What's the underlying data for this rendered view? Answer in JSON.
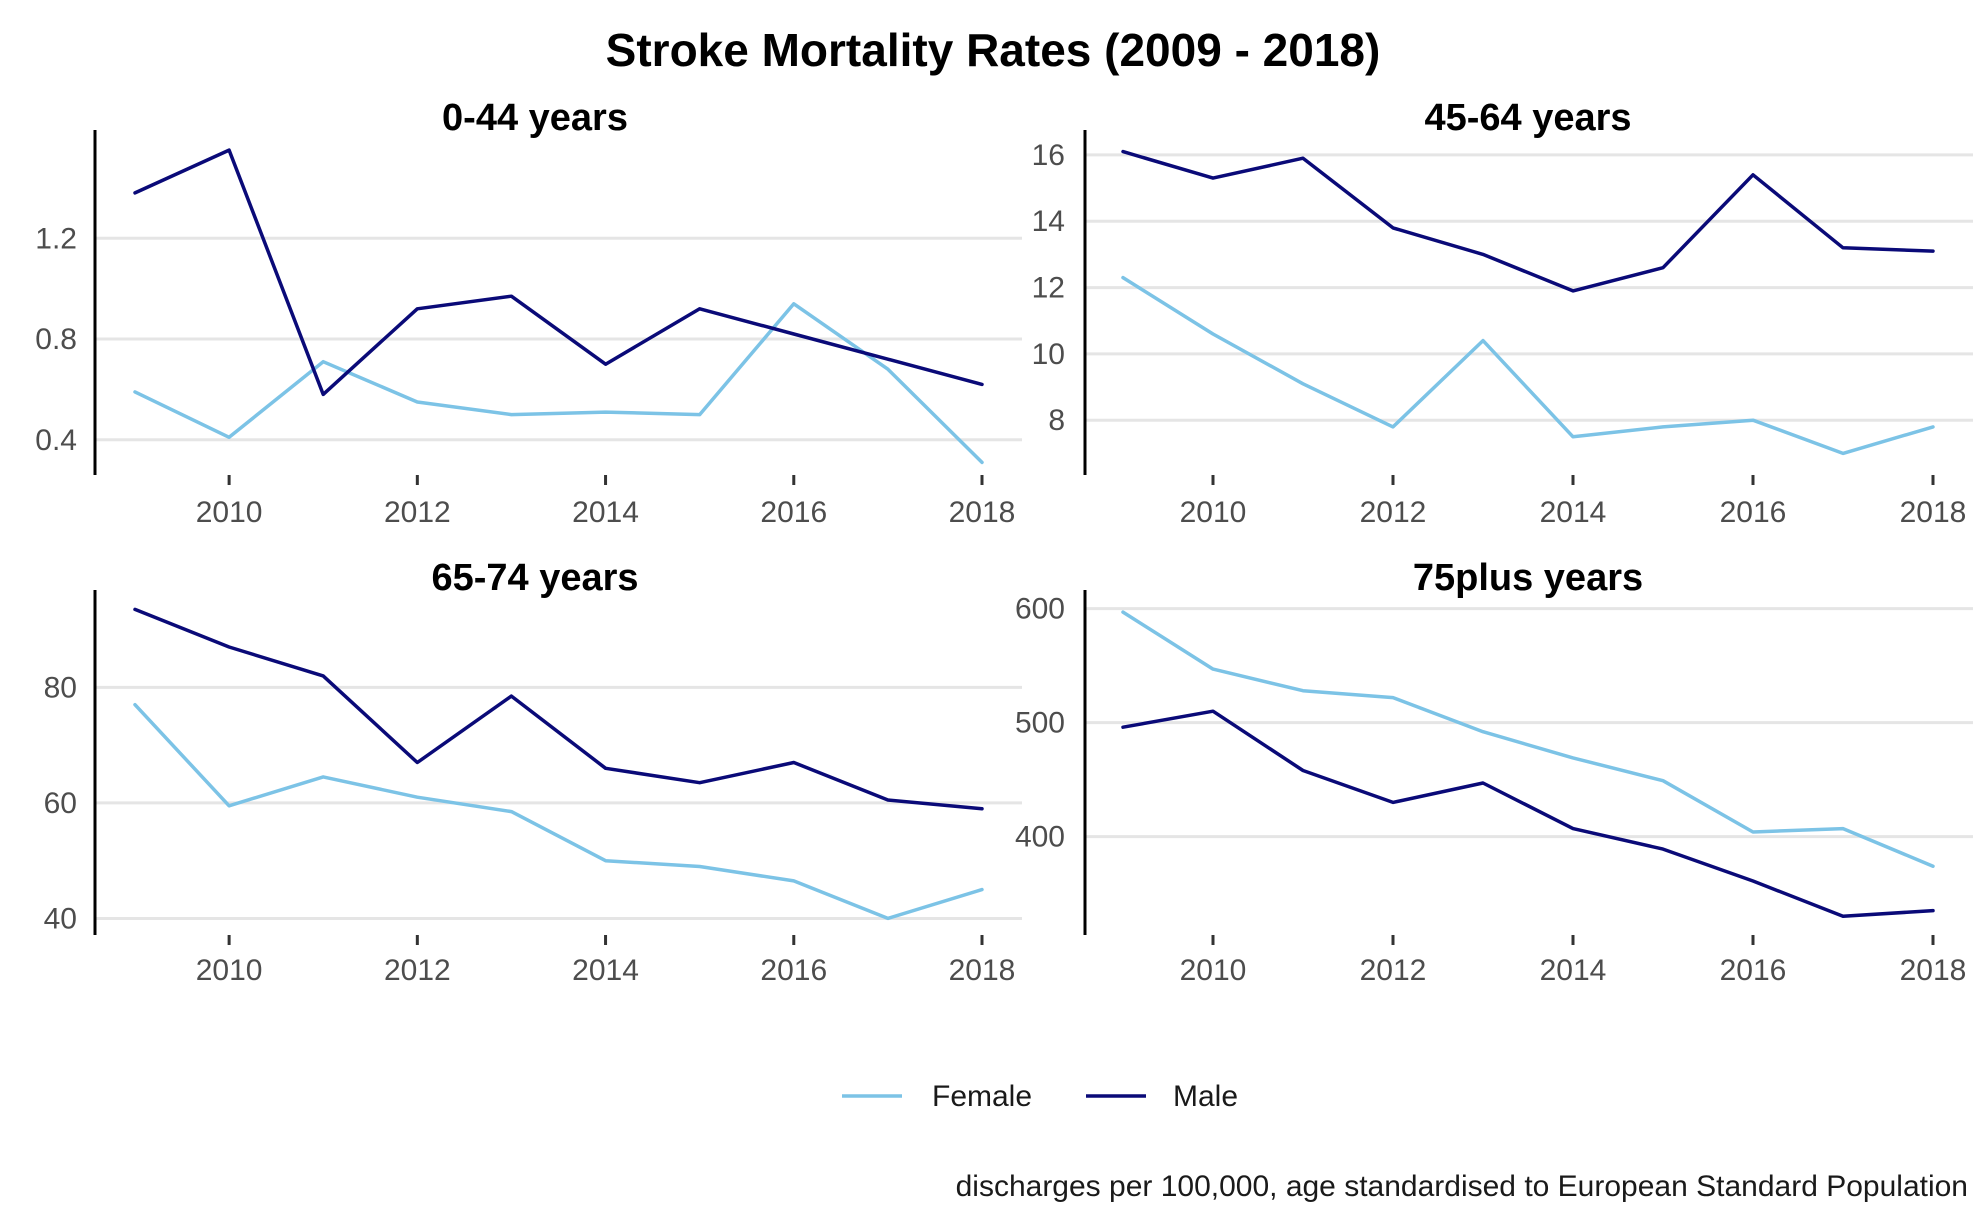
{
  "title": "Stroke Mortality Rates (2009 - 2018)",
  "caption": "discharges per 100,000, age standardised to European Standard Population",
  "colors": {
    "Female": "#7cc3e6",
    "Male": "#0a0a78"
  },
  "legend": {
    "position": "bottom",
    "items": [
      "Female",
      "Male"
    ]
  },
  "chart_data": [
    {
      "type": "line",
      "title": "0-44 years",
      "x": [
        2009,
        2010,
        2011,
        2012,
        2013,
        2014,
        2015,
        2016,
        2017,
        2018
      ],
      "x_ticks": [
        "2010",
        "2012",
        "2014",
        "2016",
        "2018"
      ],
      "y_ticks": [
        "0.4",
        "0.8",
        "1.2"
      ],
      "ylim": [
        0.28,
        1.61
      ],
      "xlim": [
        2009,
        2018
      ],
      "grid": "horizontal",
      "series": [
        {
          "name": "Female",
          "values": [
            0.59,
            0.41,
            0.71,
            0.55,
            0.5,
            0.51,
            0.5,
            0.94,
            0.68,
            0.31
          ]
        },
        {
          "name": "Male",
          "values": [
            1.38,
            1.55,
            0.58,
            0.92,
            0.97,
            0.7,
            0.92,
            0.82,
            0.72,
            0.62
          ]
        }
      ]
    },
    {
      "type": "line",
      "title": "45-64 years",
      "x": [
        2009,
        2010,
        2011,
        2012,
        2013,
        2014,
        2015,
        2016,
        2017,
        2018
      ],
      "x_ticks": [
        "2010",
        "2012",
        "2014",
        "2016",
        "2018"
      ],
      "y_ticks": [
        "8",
        "10",
        "12",
        "14",
        "16"
      ],
      "ylim": [
        6.5,
        16.6
      ],
      "xlim": [
        2009,
        2018
      ],
      "grid": "horizontal",
      "series": [
        {
          "name": "Female",
          "values": [
            12.3,
            10.6,
            9.1,
            7.8,
            10.4,
            7.5,
            7.8,
            8.0,
            7.0,
            7.8
          ]
        },
        {
          "name": "Male",
          "values": [
            16.1,
            15.3,
            15.9,
            13.8,
            13.0,
            11.9,
            12.6,
            15.4,
            13.2,
            13.1
          ]
        }
      ]
    },
    {
      "type": "line",
      "title": "65-74 years",
      "x": [
        2009,
        2010,
        2011,
        2012,
        2013,
        2014,
        2015,
        2016,
        2017,
        2018
      ],
      "x_ticks": [
        "2010",
        "2012",
        "2014",
        "2016",
        "2018"
      ],
      "y_ticks": [
        "40",
        "60",
        "80"
      ],
      "ylim": [
        38,
        96
      ],
      "xlim": [
        2009,
        2018
      ],
      "grid": "horizontal",
      "series": [
        {
          "name": "Female",
          "values": [
            77,
            59.5,
            64.5,
            61,
            58.5,
            50,
            49,
            46.5,
            40,
            45
          ]
        },
        {
          "name": "Male",
          "values": [
            93.5,
            87,
            82,
            67,
            78.5,
            66,
            63.5,
            67,
            60.5,
            59
          ]
        }
      ]
    },
    {
      "type": "line",
      "title": "75plus years",
      "x": [
        2009,
        2010,
        2011,
        2012,
        2013,
        2014,
        2015,
        2016,
        2017,
        2018
      ],
      "x_ticks": [
        "2010",
        "2012",
        "2014",
        "2016",
        "2018"
      ],
      "y_ticks": [
        "400",
        "500",
        "600"
      ],
      "ylim": [
        318,
        612
      ],
      "xlim": [
        2009,
        2018
      ],
      "grid": "horizontal",
      "series": [
        {
          "name": "Female",
          "values": [
            597,
            547,
            528,
            522,
            492,
            469,
            449,
            404,
            407,
            374
          ]
        },
        {
          "name": "Male",
          "values": [
            496,
            510,
            458,
            430,
            447,
            407,
            389,
            361,
            330,
            335
          ]
        }
      ]
    }
  ]
}
